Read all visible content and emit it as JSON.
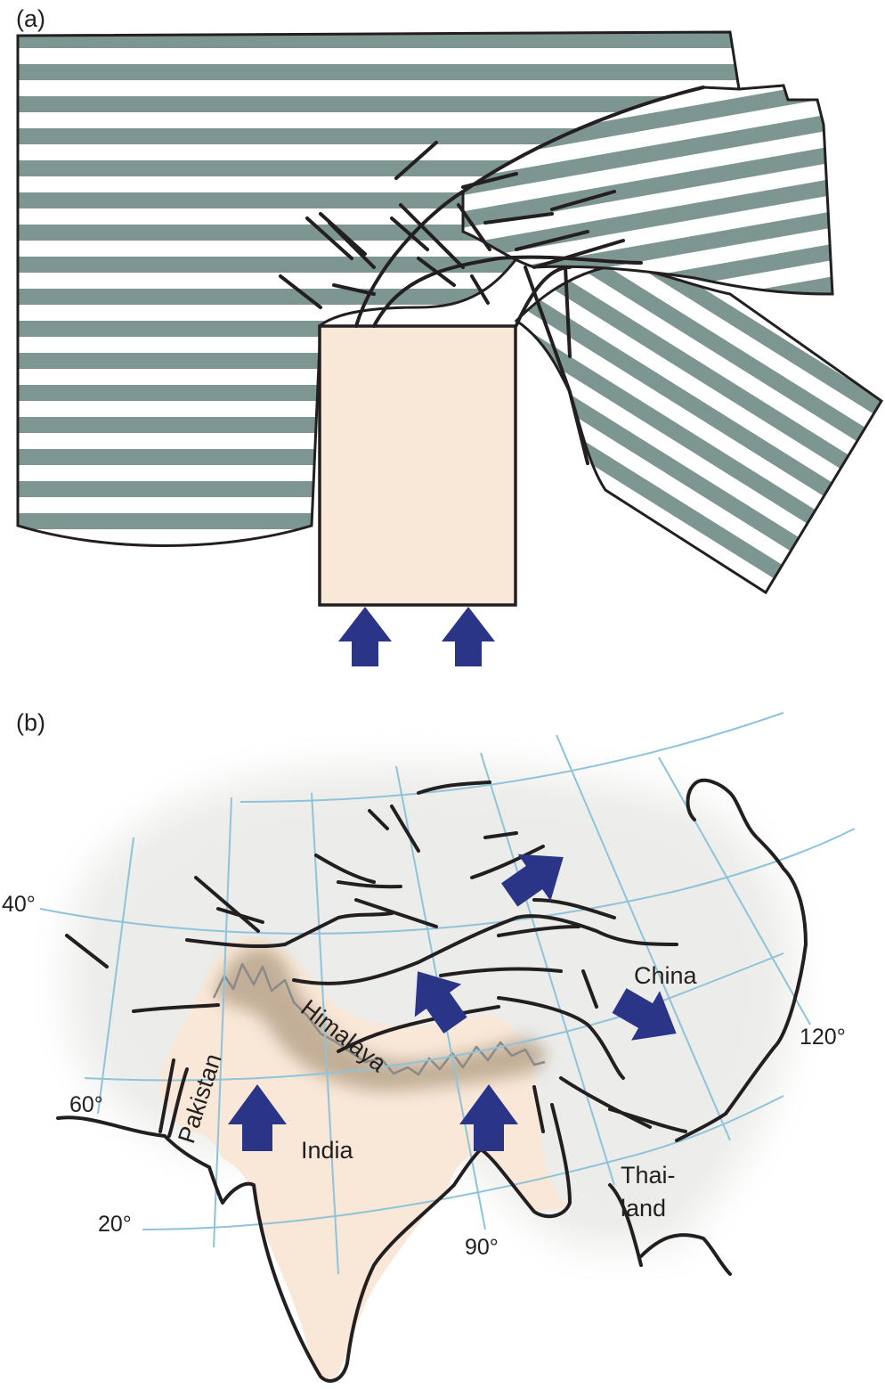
{
  "colors": {
    "stripe": "#7e9692",
    "india_block": "#f9e8d8",
    "arrow": "#2b3588",
    "grid": "#8fc3d9",
    "asia_land": "#ececea",
    "himalaya_belt": "#b9a58c"
  },
  "panel_a": {
    "label": "(a)",
    "icons": [
      "up-arrow-icon",
      "up-arrow-icon"
    ]
  },
  "panel_b": {
    "label": "(b)",
    "places": {
      "china": "China",
      "himalaya": "Himalaya",
      "pakistan": "Pakistan",
      "india": "India",
      "thailand_line1": "Thai-",
      "thailand_line2": "land"
    },
    "latitudes": {
      "lat40": "40°",
      "lat20": "20°"
    },
    "longitudes": {
      "lon60": "60°",
      "lon90": "90°",
      "lon120": "120°"
    },
    "icons": [
      "up-arrow-icon",
      "up-arrow-icon",
      "northeast-arrow-icon",
      "southeast-arrow-icon",
      "southeast-arrow-icon"
    ]
  }
}
